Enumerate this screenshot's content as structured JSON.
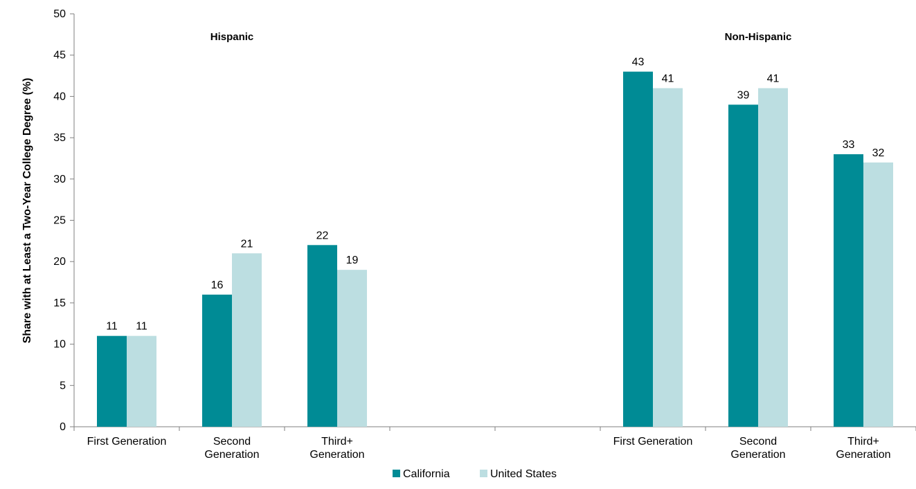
{
  "chart_data": {
    "type": "bar",
    "title": "",
    "ylabel": "Share with at Least a Two-Year College Degree (%)",
    "xlabel": "",
    "ylim": [
      0,
      50
    ],
    "yticks": [
      0,
      5,
      10,
      15,
      20,
      25,
      30,
      35,
      40,
      45,
      50
    ],
    "grid": false,
    "legend_position": "bottom",
    "groups": [
      {
        "label": "Hispanic",
        "categories": [
          "First Generation",
          "Second Generation",
          "Third+ Generation"
        ]
      },
      {
        "label": "Non-Hispanic",
        "categories": [
          "First Generation",
          "Second Generation",
          "Third+ Generation"
        ]
      }
    ],
    "category_lines": [
      [
        "First Generation"
      ],
      [
        "Second",
        "Generation"
      ],
      [
        "Third+",
        "Generation"
      ]
    ],
    "series": [
      {
        "name": "California",
        "color": "#008b95",
        "values": [
          [
            11,
            16,
            22
          ],
          [
            43,
            39,
            33
          ]
        ]
      },
      {
        "name": "United States",
        "color": "#bcdee1",
        "values": [
          [
            11,
            21,
            19
          ],
          [
            41,
            41,
            32
          ]
        ]
      }
    ]
  }
}
